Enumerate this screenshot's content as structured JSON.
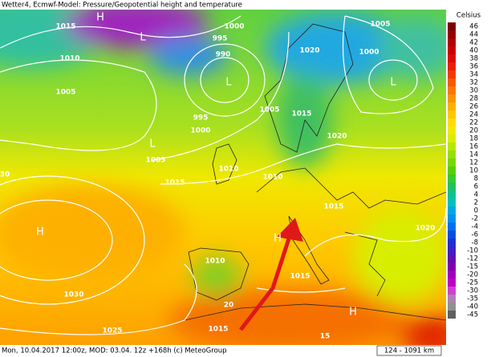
{
  "header": {
    "title": "Wetter4, Ecmwf-Model: Pressure/Geopotential height and temperature"
  },
  "legend": {
    "title": "Celsius",
    "values": [
      46,
      44,
      42,
      40,
      38,
      36,
      34,
      32,
      30,
      28,
      26,
      24,
      22,
      20,
      18,
      16,
      14,
      12,
      10,
      8,
      6,
      4,
      2,
      0,
      -2,
      -4,
      -6,
      -8,
      -10,
      -12,
      -15,
      -20,
      -25,
      -30,
      -35,
      -40,
      -45
    ],
    "colors": [
      "#7a0000",
      "#960000",
      "#b00000",
      "#c80000",
      "#dc0a00",
      "#e82000",
      "#f03c00",
      "#f55a00",
      "#f87800",
      "#fb9400",
      "#fdb000",
      "#ffc800",
      "#ffdc00",
      "#f2e800",
      "#d8ee00",
      "#b8e800",
      "#98e000",
      "#78d800",
      "#58d000",
      "#38c830",
      "#20c060",
      "#10c090",
      "#00c0c0",
      "#00a8e0",
      "#0090f0",
      "#0070f0",
      "#0050e0",
      "#2030d0",
      "#4020c0",
      "#6010b0",
      "#8000b0",
      "#a000c0",
      "#c000c8",
      "#d040d0",
      "#b080b0",
      "#909090",
      "#606060"
    ]
  },
  "isobars": [
    1015,
    1010,
    1005,
    995,
    990,
    1000,
    995,
    1000,
    1005,
    1015,
    1010,
    1010,
    1015,
    1005,
    1020,
    1000,
    1005,
    1020,
    1015,
    1010,
    1015,
    1030,
    1025,
    1015,
    1020,
    30,
    20,
    15
  ],
  "centers": [
    "H",
    "H",
    "H",
    "H",
    "L",
    "L",
    "L",
    "L"
  ],
  "footer": {
    "caption": "Mon, 10.04.2017 12:00z, MOD: 03.04. 12z +168h (c) MeteoGroup",
    "scale": "124 - 1091 km"
  }
}
